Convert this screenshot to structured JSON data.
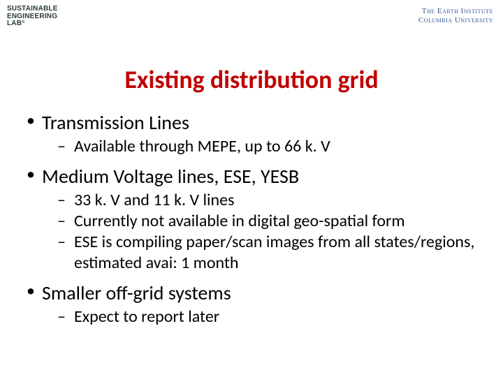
{
  "logos": {
    "left": {
      "line1": "SUSTAINABLE",
      "line2": "ENGINEERING",
      "line3": "LAB",
      "reg": "®"
    },
    "right": {
      "line1": "The Earth Institute",
      "line2": "Columbia University"
    }
  },
  "slide": {
    "title": "Existing distribution grid",
    "title_color": "#c00000",
    "background_color": "#ffffff",
    "body_font_color": "#000000",
    "title_fontsize": 36,
    "l1_fontsize": 28,
    "l2_fontsize": 24,
    "bullets": [
      {
        "text": "Transmission Lines",
        "sub": [
          "Available through MEPE, up to 66 k. V"
        ]
      },
      {
        "text": "Medium Voltage lines, ESE, YESB",
        "sub": [
          "33 k. V and 11 k. V lines",
          "Currently not available in digital geo-spatial form",
          "ESE is compiling paper/scan images from all states/regions, estimated avai: 1 month"
        ]
      },
      {
        "text": "Smaller off-grid systems",
        "sub": [
          "Expect to report later"
        ]
      }
    ]
  }
}
